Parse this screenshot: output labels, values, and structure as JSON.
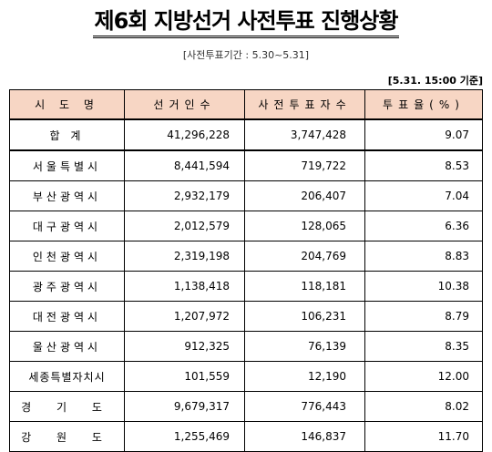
{
  "title": "제6회 지방선거 사전투표 진행상황",
  "period": "[사전투표기간 : 5.30~5.31]",
  "as_of": "[5.31. 15:00 기준]",
  "table": {
    "headers": [
      "시 도 명",
      "선거인수",
      "사전투표자수",
      "투표율(%)"
    ],
    "rows": [
      {
        "name": "합 계",
        "electors": "41,296,228",
        "voters": "3,747,428",
        "rate": "9.07"
      },
      {
        "name": "서울특별시",
        "electors": "8,441,594",
        "voters": "719,722",
        "rate": "8.53"
      },
      {
        "name": "부산광역시",
        "electors": "2,932,179",
        "voters": "206,407",
        "rate": "7.04"
      },
      {
        "name": "대구광역시",
        "electors": "2,012,579",
        "voters": "128,065",
        "rate": "6.36"
      },
      {
        "name": "인천광역시",
        "electors": "2,319,198",
        "voters": "204,769",
        "rate": "8.83"
      },
      {
        "name": "광주광역시",
        "electors": "1,138,418",
        "voters": "118,181",
        "rate": "10.38"
      },
      {
        "name": "대전광역시",
        "electors": "1,207,972",
        "voters": "106,231",
        "rate": "8.79"
      },
      {
        "name": "울산광역시",
        "electors": "912,325",
        "voters": "76,139",
        "rate": "8.35"
      },
      {
        "name": "세종특별자치시",
        "electors": "101,559",
        "voters": "12,190",
        "rate": "12.00"
      },
      {
        "name": "경 기 도",
        "electors": "9,679,317",
        "voters": "776,443",
        "rate": "8.02"
      },
      {
        "name": "강 원 도",
        "electors": "1,255,469",
        "voters": "146,837",
        "rate": "11.70"
      }
    ]
  }
}
